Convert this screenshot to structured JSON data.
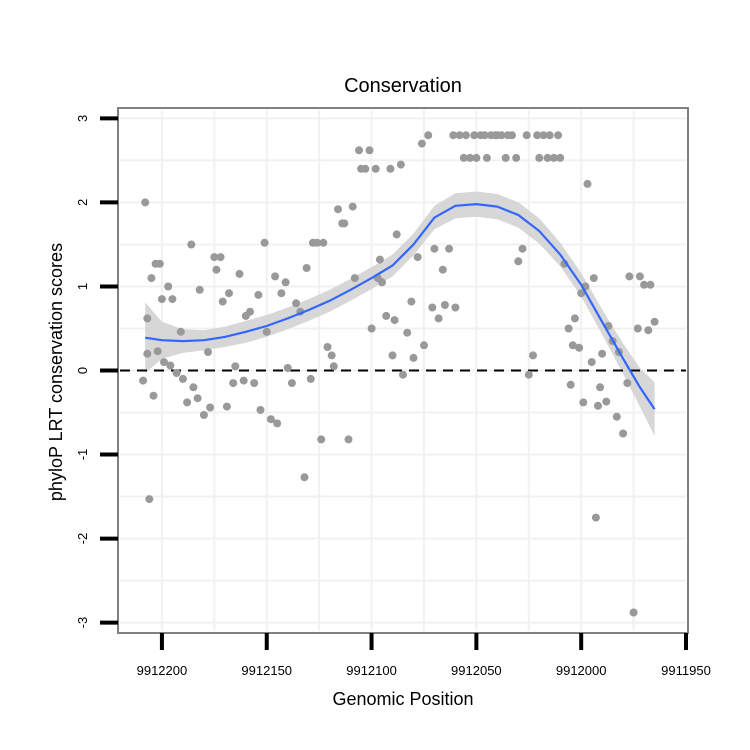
{
  "chart_data": {
    "type": "scatter",
    "title": "Conservation",
    "xlabel": "Genomic Position",
    "ylabel": "phyloP LRT conservation scores",
    "x_reversed": true,
    "xlim": [
      9912220,
      9911950
    ],
    "ylim": [
      -3.1,
      3.1
    ],
    "x_ticks": [
      9912200,
      9912150,
      9912100,
      9912050,
      9912000,
      9911950
    ],
    "x_tick_labels": [
      "9912200",
      "9912150",
      "9912100",
      "9912050",
      "9912000",
      "9911950"
    ],
    "y_ticks": [
      3,
      2,
      1,
      0,
      -1,
      -2,
      -3
    ],
    "y_tick_labels": [
      "3",
      "2",
      "1",
      "0",
      "-1",
      "-2",
      "-3"
    ],
    "grid": true,
    "reference_line": {
      "y": 0,
      "style": "dashed",
      "color": "#000000"
    },
    "colors": {
      "points": "#999999",
      "smooth": "#3366ff",
      "ribbon": "#d3d3d3"
    },
    "points": [
      {
        "x": 9912208,
        "y": 2.0
      },
      {
        "x": 9912206,
        "y": -1.53
      },
      {
        "x": 9912205,
        "y": 1.1
      },
      {
        "x": 9912203,
        "y": 1.27
      },
      {
        "x": 9912201,
        "y": 1.27
      },
      {
        "x": 9912207,
        "y": 0.62
      },
      {
        "x": 9912207,
        "y": 0.2
      },
      {
        "x": 9912209,
        "y": -0.12
      },
      {
        "x": 9912204,
        "y": -0.3
      },
      {
        "x": 9912202,
        "y": 0.23
      },
      {
        "x": 9912200,
        "y": 0.85
      },
      {
        "x": 9912199,
        "y": 0.1
      },
      {
        "x": 9912197,
        "y": 1.0
      },
      {
        "x": 9912196,
        "y": 0.06
      },
      {
        "x": 9912195,
        "y": 0.85
      },
      {
        "x": 9912193,
        "y": -0.03
      },
      {
        "x": 9912191,
        "y": 0.46
      },
      {
        "x": 9912190,
        "y": -0.1
      },
      {
        "x": 9912188,
        "y": -0.38
      },
      {
        "x": 9912186,
        "y": 1.5
      },
      {
        "x": 9912185,
        "y": -0.2
      },
      {
        "x": 9912183,
        "y": -0.33
      },
      {
        "x": 9912182,
        "y": 0.96
      },
      {
        "x": 9912180,
        "y": -0.53
      },
      {
        "x": 9912178,
        "y": 0.22
      },
      {
        "x": 9912177,
        "y": -0.44
      },
      {
        "x": 9912175,
        "y": 1.35
      },
      {
        "x": 9912174,
        "y": 1.2
      },
      {
        "x": 9912172,
        "y": 1.35
      },
      {
        "x": 9912171,
        "y": 0.82
      },
      {
        "x": 9912169,
        "y": -0.43
      },
      {
        "x": 9912168,
        "y": 0.92
      },
      {
        "x": 9912166,
        "y": -0.15
      },
      {
        "x": 9912165,
        "y": 0.05
      },
      {
        "x": 9912163,
        "y": 1.15
      },
      {
        "x": 9912161,
        "y": -0.12
      },
      {
        "x": 9912160,
        "y": 0.65
      },
      {
        "x": 9912158,
        "y": 0.7
      },
      {
        "x": 9912156,
        "y": -0.15
      },
      {
        "x": 9912154,
        "y": 0.9
      },
      {
        "x": 9912153,
        "y": -0.47
      },
      {
        "x": 9912151,
        "y": 1.52
      },
      {
        "x": 9912150,
        "y": 0.46
      },
      {
        "x": 9912148,
        "y": -0.58
      },
      {
        "x": 9912146,
        "y": 1.12
      },
      {
        "x": 9912145,
        "y": -0.63
      },
      {
        "x": 9912143,
        "y": 0.92
      },
      {
        "x": 9912141,
        "y": 1.05
      },
      {
        "x": 9912140,
        "y": 0.03
      },
      {
        "x": 9912138,
        "y": -0.15
      },
      {
        "x": 9912136,
        "y": 0.8
      },
      {
        "x": 9912134,
        "y": 0.7
      },
      {
        "x": 9912132,
        "y": -1.27
      },
      {
        "x": 9912131,
        "y": 1.22
      },
      {
        "x": 9912129,
        "y": -0.1
      },
      {
        "x": 9912128,
        "y": 1.52
      },
      {
        "x": 9912126,
        "y": 1.52
      },
      {
        "x": 9912124,
        "y": -0.82
      },
      {
        "x": 9912123,
        "y": 1.52
      },
      {
        "x": 9912121,
        "y": 0.28
      },
      {
        "x": 9912119,
        "y": 0.18
      },
      {
        "x": 9912118,
        "y": 0.05
      },
      {
        "x": 9912116,
        "y": 1.92
      },
      {
        "x": 9912114,
        "y": 1.75
      },
      {
        "x": 9912113,
        "y": 1.75
      },
      {
        "x": 9912111,
        "y": -0.82
      },
      {
        "x": 9912109,
        "y": 1.95
      },
      {
        "x": 9912108,
        "y": 1.1
      },
      {
        "x": 9912106,
        "y": 2.62
      },
      {
        "x": 9912105,
        "y": 2.4
      },
      {
        "x": 9912103,
        "y": 2.4
      },
      {
        "x": 9912101,
        "y": 2.62
      },
      {
        "x": 9912100,
        "y": 0.5
      },
      {
        "x": 9912098,
        "y": 2.4
      },
      {
        "x": 9912096,
        "y": 1.32
      },
      {
        "x": 9912095,
        "y": 1.05
      },
      {
        "x": 9912093,
        "y": 0.65
      },
      {
        "x": 9912091,
        "y": 2.4
      },
      {
        "x": 9912090,
        "y": 0.18
      },
      {
        "x": 9912088,
        "y": 1.62
      },
      {
        "x": 9912086,
        "y": 2.45
      },
      {
        "x": 9912085,
        "y": -0.05
      },
      {
        "x": 9912083,
        "y": 0.45
      },
      {
        "x": 9912081,
        "y": 0.82
      },
      {
        "x": 9912080,
        "y": 0.15
      },
      {
        "x": 9912078,
        "y": 1.35
      },
      {
        "x": 9912076,
        "y": 2.7
      },
      {
        "x": 9912075,
        "y": 0.3
      },
      {
        "x": 9912073,
        "y": 2.8
      },
      {
        "x": 9912071,
        "y": 0.75
      },
      {
        "x": 9912070,
        "y": 1.45
      },
      {
        "x": 9912068,
        "y": 0.62
      },
      {
        "x": 9912066,
        "y": 1.2
      },
      {
        "x": 9912065,
        "y": 0.78
      },
      {
        "x": 9912063,
        "y": 1.45
      },
      {
        "x": 9912061,
        "y": 2.8
      },
      {
        "x": 9912060,
        "y": 0.75
      },
      {
        "x": 9912058,
        "y": 2.8
      },
      {
        "x": 9912056,
        "y": 2.53
      },
      {
        "x": 9912055,
        "y": 2.8
      },
      {
        "x": 9912053,
        "y": 2.53
      },
      {
        "x": 9912051,
        "y": 2.8
      },
      {
        "x": 9912050,
        "y": 2.53
      },
      {
        "x": 9912048,
        "y": 2.8
      },
      {
        "x": 9912046,
        "y": 2.8
      },
      {
        "x": 9912045,
        "y": 2.53
      },
      {
        "x": 9912043,
        "y": 2.8
      },
      {
        "x": 9912041,
        "y": 2.8
      },
      {
        "x": 9912040,
        "y": 2.8
      },
      {
        "x": 9912038,
        "y": 2.8
      },
      {
        "x": 9912036,
        "y": 2.53
      },
      {
        "x": 9912035,
        "y": 2.8
      },
      {
        "x": 9912033,
        "y": 2.8
      },
      {
        "x": 9912031,
        "y": 2.53
      },
      {
        "x": 9912030,
        "y": 1.3
      },
      {
        "x": 9912028,
        "y": 1.45
      },
      {
        "x": 9912026,
        "y": 2.8
      },
      {
        "x": 9912025,
        "y": -0.05
      },
      {
        "x": 9912023,
        "y": 0.18
      },
      {
        "x": 9912021,
        "y": 2.8
      },
      {
        "x": 9912020,
        "y": 2.53
      },
      {
        "x": 9912018,
        "y": 2.8
      },
      {
        "x": 9912016,
        "y": 2.53
      },
      {
        "x": 9912015,
        "y": 2.8
      },
      {
        "x": 9912013,
        "y": 2.53
      },
      {
        "x": 9912011,
        "y": 2.8
      },
      {
        "x": 9912010,
        "y": 2.53
      },
      {
        "x": 9912008,
        "y": 1.27
      },
      {
        "x": 9912006,
        "y": 0.5
      },
      {
        "x": 9912005,
        "y": -0.17
      },
      {
        "x": 9912003,
        "y": 0.62
      },
      {
        "x": 9912001,
        "y": 0.27
      },
      {
        "x": 9912000,
        "y": 0.92
      },
      {
        "x": 9911998,
        "y": 1.0
      },
      {
        "x": 9911997,
        "y": 2.22
      },
      {
        "x": 9911995,
        "y": 0.1
      },
      {
        "x": 9911993,
        "y": -1.75
      },
      {
        "x": 9911992,
        "y": -0.42
      },
      {
        "x": 9911990,
        "y": 0.2
      },
      {
        "x": 9911988,
        "y": -0.37
      },
      {
        "x": 9911987,
        "y": 0.53
      },
      {
        "x": 9911985,
        "y": 0.35
      },
      {
        "x": 9911983,
        "y": -0.55
      },
      {
        "x": 9911982,
        "y": 0.22
      },
      {
        "x": 9911980,
        "y": -0.75
      },
      {
        "x": 9911978,
        "y": -0.15
      },
      {
        "x": 9911977,
        "y": 1.12
      },
      {
        "x": 9911975,
        "y": -2.88
      },
      {
        "x": 9911973,
        "y": 0.5
      },
      {
        "x": 9911972,
        "y": 1.12
      },
      {
        "x": 9911970,
        "y": 1.02
      },
      {
        "x": 9911968,
        "y": 0.48
      },
      {
        "x": 9911967,
        "y": 1.02
      },
      {
        "x": 9911965,
        "y": 0.58
      },
      {
        "x": 9911994,
        "y": 1.1
      },
      {
        "x": 9911999,
        "y": -0.38
      },
      {
        "x": 9911991,
        "y": -0.2
      },
      {
        "x": 9912004,
        "y": 0.3
      },
      {
        "x": 9912089,
        "y": 0.6
      },
      {
        "x": 9912097,
        "y": 1.1
      }
    ],
    "smooth": [
      {
        "x": 9912208,
        "y": 0.39
      },
      {
        "x": 9912200,
        "y": 0.36
      },
      {
        "x": 9912190,
        "y": 0.35
      },
      {
        "x": 9912180,
        "y": 0.36
      },
      {
        "x": 9912170,
        "y": 0.4
      },
      {
        "x": 9912160,
        "y": 0.46
      },
      {
        "x": 9912150,
        "y": 0.53
      },
      {
        "x": 9912140,
        "y": 0.62
      },
      {
        "x": 9912130,
        "y": 0.72
      },
      {
        "x": 9912120,
        "y": 0.83
      },
      {
        "x": 9912110,
        "y": 0.96
      },
      {
        "x": 9912100,
        "y": 1.1
      },
      {
        "x": 9912090,
        "y": 1.25
      },
      {
        "x": 9912080,
        "y": 1.5
      },
      {
        "x": 9912070,
        "y": 1.82
      },
      {
        "x": 9912060,
        "y": 1.96
      },
      {
        "x": 9912050,
        "y": 1.98
      },
      {
        "x": 9912040,
        "y": 1.95
      },
      {
        "x": 9912030,
        "y": 1.85
      },
      {
        "x": 9912020,
        "y": 1.66
      },
      {
        "x": 9912010,
        "y": 1.38
      },
      {
        "x": 9912000,
        "y": 1.02
      },
      {
        "x": 9911990,
        "y": 0.58
      },
      {
        "x": 9911980,
        "y": 0.14
      },
      {
        "x": 9911972,
        "y": -0.2
      },
      {
        "x": 9911965,
        "y": -0.46
      }
    ],
    "ribbon_halfwidth": [
      0.42,
      0.22,
      0.14,
      0.12,
      0.12,
      0.13,
      0.13,
      0.13,
      0.13,
      0.13,
      0.13,
      0.13,
      0.13,
      0.13,
      0.14,
      0.15,
      0.15,
      0.15,
      0.15,
      0.15,
      0.14,
      0.14,
      0.15,
      0.18,
      0.23,
      0.32
    ]
  }
}
